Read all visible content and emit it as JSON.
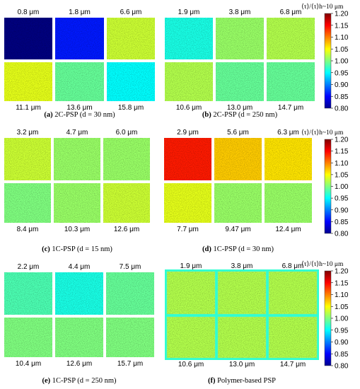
{
  "colorbar": {
    "title": "⟨τ⟩/⟨τ⟩h~10 μm",
    "ticks": [
      "1.20",
      "1.15",
      "1.10",
      "1.05",
      "1.00",
      "0.95",
      "0.90",
      "0.85",
      "0.80"
    ],
    "range": [
      0.8,
      1.2
    ],
    "colormap": "jet"
  },
  "panels": [
    {
      "id": "a",
      "caption_letter": "(a)",
      "caption_text": "2C-PSP (d = 30 nm)",
      "top_labels": [
        "0.8 μm",
        "1.8 μm",
        "6.6 μm"
      ],
      "bottom_labels": [
        "11.1 μm",
        "13.6 μm",
        "15.8 μm"
      ],
      "values": [
        0.8,
        0.86,
        1.03,
        1.04,
        0.99,
        0.95
      ]
    },
    {
      "id": "b",
      "caption_letter": "(b)",
      "caption_text": "2C-PSP (d = 250 nm)",
      "top_labels": [
        "1.9 μm",
        "3.8 μm",
        "6.8 μm"
      ],
      "bottom_labels": [
        "10.6 μm",
        "13.0 μm",
        "14.7 μm"
      ],
      "values": [
        0.96,
        1.01,
        1.02,
        1.02,
        0.99,
        0.99
      ]
    },
    {
      "id": "c",
      "caption_letter": "(c)",
      "caption_text": "1C-PSP (d = 15 nm)",
      "top_labels": [
        "3.2 μm",
        "4.7 μm",
        "6.0 μm"
      ],
      "bottom_labels": [
        "8.4 μm",
        "10.3 μm",
        "12.6 μm"
      ],
      "values": [
        1.03,
        1.01,
        1.01,
        1.0,
        1.01,
        1.03
      ]
    },
    {
      "id": "d",
      "caption_letter": "(d)",
      "caption_text": "1C-PSP (d = 30 nm)",
      "top_labels": [
        "2.9 μm",
        "5.6 μm",
        "6.3 μm"
      ],
      "bottom_labels": [
        "7.7 μm",
        "9.47 μm",
        "12.4 μm"
      ],
      "values": [
        1.14,
        1.07,
        1.06,
        1.04,
        1.01,
        1.01
      ]
    },
    {
      "id": "e",
      "caption_letter": "(e)",
      "caption_text": "1C-PSP (d = 250 nm)",
      "top_labels": [
        "2.2 μm",
        "4.4 μm",
        "7.5 μm"
      ],
      "bottom_labels": [
        "10.4 μm",
        "12.6 μm",
        "15.7 μm"
      ],
      "values": [
        0.98,
        0.96,
        0.99,
        1.0,
        1.0,
        1.0
      ]
    },
    {
      "id": "f",
      "caption_letter": "(f)",
      "caption_text": "Polymer-based PSP",
      "top_labels": [
        "1.9 μm",
        "3.8 μm",
        "6.8 μm"
      ],
      "bottom_labels": [
        "10.6 μm",
        "13.0 μm",
        "14.7 μm"
      ],
      "values": [
        1.02,
        1.02,
        1.02,
        1.02,
        1.02,
        1.02
      ]
    }
  ]
}
